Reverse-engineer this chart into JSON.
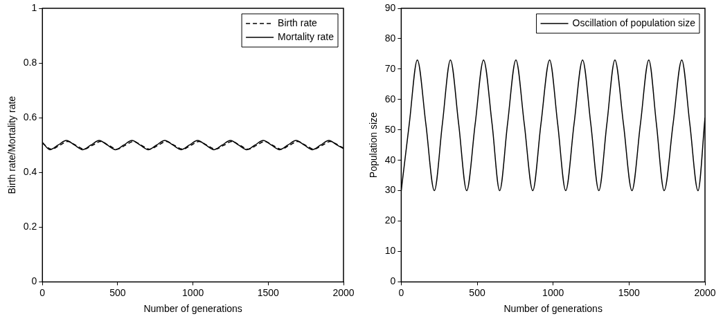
{
  "chart_data": [
    {
      "type": "line",
      "xlabel": "Number of generations",
      "ylabel": "Birth rate/Mortality rate",
      "xlim": [
        0,
        2000
      ],
      "xticks": [
        0,
        500,
        1000,
        1500,
        2000
      ],
      "ylim": [
        0,
        1
      ],
      "yticks": [
        0,
        0.2,
        0.4,
        0.6,
        0.8,
        1
      ],
      "grid": false,
      "legend": "top right",
      "marker": "none",
      "series": [
        {
          "name": "Birth rate",
          "color": "#000000",
          "line_style": "dashed",
          "x": [
            0,
            60,
            114,
            169,
            223,
            278,
            332,
            387,
            441,
            496,
            550,
            605,
            659,
            714,
            768,
            823,
            877,
            932,
            986,
            1041,
            1095,
            1150,
            1204,
            1259,
            1313,
            1368,
            1422,
            1477,
            1531,
            1586,
            1640,
            1695,
            1749,
            1804,
            1858,
            1913,
            1967,
            2000
          ],
          "values": [
            0.507,
            0.485,
            0.499,
            0.513,
            0.499,
            0.485,
            0.499,
            0.513,
            0.499,
            0.485,
            0.499,
            0.513,
            0.499,
            0.485,
            0.499,
            0.513,
            0.499,
            0.485,
            0.499,
            0.513,
            0.499,
            0.485,
            0.499,
            0.513,
            0.499,
            0.485,
            0.499,
            0.513,
            0.499,
            0.485,
            0.499,
            0.513,
            0.499,
            0.485,
            0.499,
            0.513,
            0.499,
            0.489
          ]
        },
        {
          "name": "Mortality rate",
          "color": "#000000",
          "line_style": "solid",
          "x": [
            0,
            50,
            104,
            159,
            213,
            268,
            322,
            377,
            431,
            486,
            540,
            595,
            649,
            704,
            758,
            813,
            867,
            922,
            976,
            1031,
            1085,
            1140,
            1194,
            1249,
            1303,
            1358,
            1412,
            1467,
            1521,
            1576,
            1630,
            1685,
            1739,
            1794,
            1848,
            1903,
            1957,
            2000
          ],
          "values": [
            0.51,
            0.483,
            0.5,
            0.517,
            0.5,
            0.483,
            0.5,
            0.517,
            0.5,
            0.483,
            0.5,
            0.517,
            0.5,
            0.483,
            0.5,
            0.517,
            0.5,
            0.483,
            0.5,
            0.517,
            0.5,
            0.483,
            0.5,
            0.517,
            0.5,
            0.483,
            0.5,
            0.517,
            0.5,
            0.483,
            0.5,
            0.517,
            0.5,
            0.483,
            0.5,
            0.517,
            0.5,
            0.487
          ]
        }
      ]
    },
    {
      "type": "line",
      "xlabel": "Number of generations",
      "ylabel": "Population size",
      "xlim": [
        0,
        2000
      ],
      "xticks": [
        0,
        500,
        1000,
        1500,
        2000
      ],
      "ylim": [
        0,
        90
      ],
      "yticks": [
        0,
        10,
        20,
        30,
        40,
        50,
        60,
        70,
        80,
        90
      ],
      "grid": false,
      "legend": "top right",
      "marker": "none",
      "series": [
        {
          "name": "Oscillation of population size",
          "color": "#000000",
          "line_style": "solid",
          "x": [
            0,
            53,
            106,
            162,
            218,
            271,
            324,
            378,
            431,
            487,
            542,
            598,
            648,
            700,
            755,
            810,
            866,
            920,
            977,
            1030,
            1083,
            1138,
            1194,
            1248,
            1301,
            1354,
            1407,
            1463,
            1519,
            1575,
            1630,
            1680,
            1731,
            1790,
            1847,
            1900,
            1954,
            2000
          ],
          "values": [
            30,
            52,
            73,
            52,
            30,
            52,
            73,
            52,
            30,
            52,
            73,
            52,
            30,
            52,
            73,
            52,
            30,
            52,
            73,
            52,
            30,
            52,
            73,
            52,
            30,
            52,
            73,
            52,
            30,
            52,
            73,
            52,
            30,
            52,
            73,
            52,
            30,
            54
          ]
        }
      ]
    }
  ]
}
